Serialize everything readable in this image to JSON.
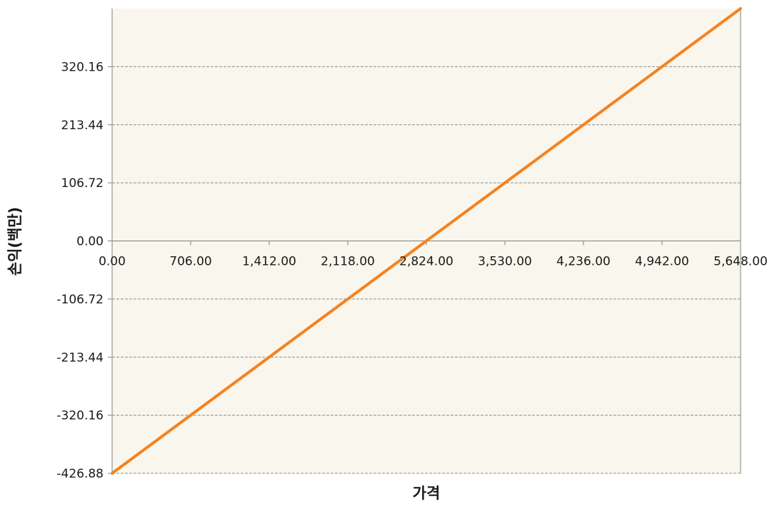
{
  "chart_data": {
    "type": "line",
    "title": "",
    "xlabel": "가격",
    "ylabel": "손익(백만)",
    "x_ticks": [
      "0.00",
      "706.00",
      "1,412.00",
      "2,118.00",
      "2,824.00",
      "3,530.00",
      "4,236.00",
      "4,942.00",
      "5,648.00"
    ],
    "y_ticks": [
      "-426.88",
      "-320.16",
      "-213.44",
      "-106.72",
      "0.00",
      "106.72",
      "213.44",
      "320.16"
    ],
    "xlim": [
      0,
      5648
    ],
    "ylim": [
      -426.88,
      426.88
    ],
    "grid": true,
    "series": [
      {
        "x": [
          0,
          706,
          1412,
          2118,
          2824,
          3530,
          4236,
          4942,
          5648
        ],
        "y": [
          -426.88,
          -320.16,
          -213.44,
          -106.72,
          0,
          106.72,
          213.44,
          320.16,
          426.88
        ],
        "color": "#f5821f"
      }
    ],
    "colors": {
      "plot_background": "#f9f6ed",
      "gridline": "#8c8c8c",
      "axis": "#808080",
      "border": "#808080"
    }
  }
}
